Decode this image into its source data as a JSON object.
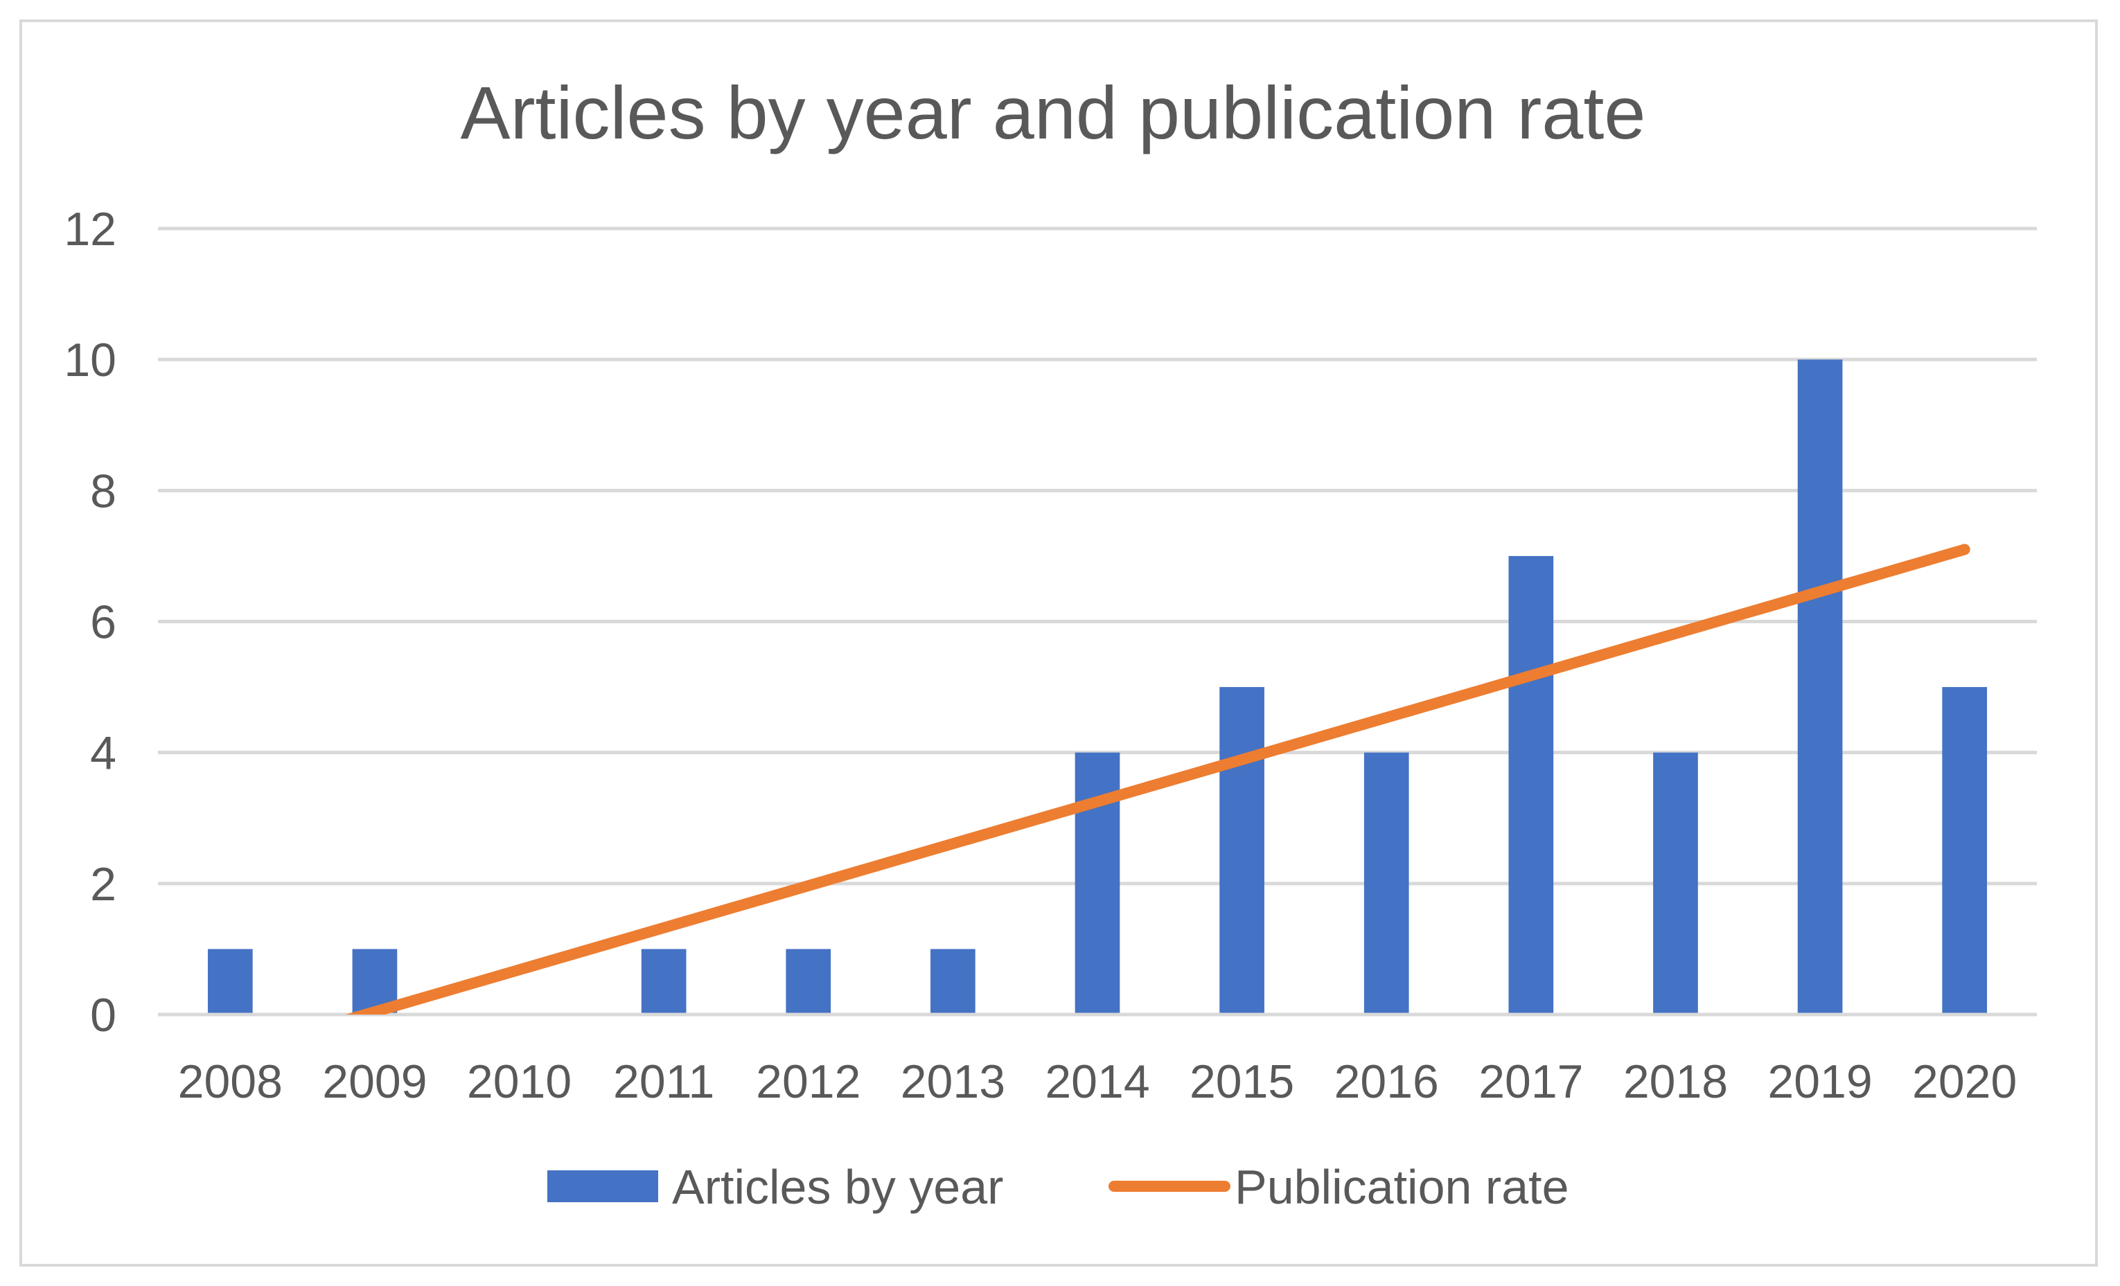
{
  "chart_data": {
    "type": "bar",
    "title": "Articles by year and publication rate",
    "xlabel": "",
    "ylabel": "",
    "categories": [
      "2008",
      "2009",
      "2010",
      "2011",
      "2012",
      "2013",
      "2014",
      "2015",
      "2016",
      "2017",
      "2018",
      "2019",
      "2020"
    ],
    "series": [
      {
        "name": "Articles by year",
        "type": "bar",
        "color": "#4472c4",
        "values": [
          1,
          1,
          0,
          1,
          1,
          1,
          4,
          5,
          4,
          7,
          4,
          10,
          5
        ]
      },
      {
        "name": "Publication rate",
        "type": "line",
        "color": "#ed7d31",
        "start_value": -0.6,
        "end_value": 7.1
      }
    ],
    "ylim": [
      0,
      12
    ],
    "yticks": [
      0,
      2,
      4,
      6,
      8,
      10,
      12
    ],
    "grid": true,
    "legend_position": "bottom"
  }
}
